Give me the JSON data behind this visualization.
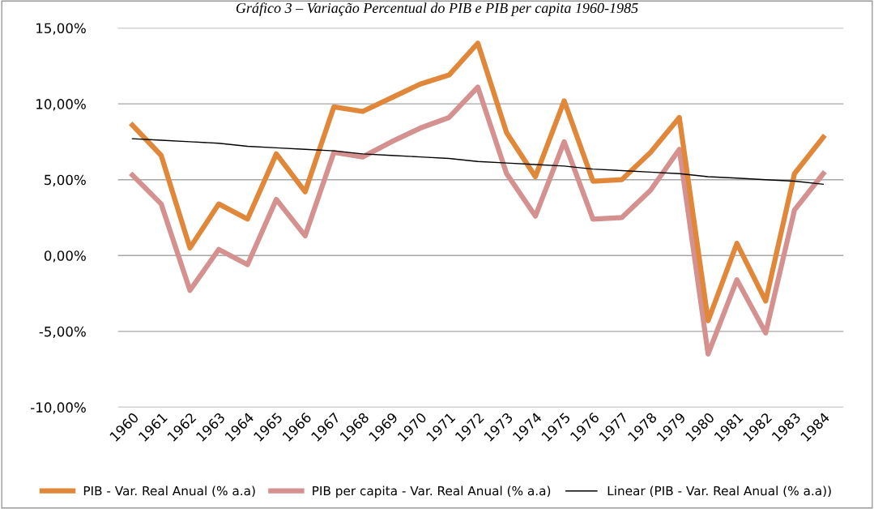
{
  "chart_data": {
    "type": "line",
    "title": "Gráfico 3 – Variação Percentual do PIB e PIB per capita 1960-1985",
    "categories": [
      "1960",
      "1961",
      "1962",
      "1963",
      "1964",
      "1965",
      "1966",
      "1967",
      "1968",
      "1969",
      "1970",
      "1971",
      "1972",
      "1973",
      "1974",
      "1975",
      "1976",
      "1977",
      "1978",
      "1979",
      "1980",
      "1981",
      "1982",
      "1983",
      "1984"
    ],
    "series": [
      {
        "name": "PIB - Var. Real Anual (% a.a)",
        "color": "#e0873a",
        "values": [
          8.6,
          6.6,
          0.5,
          3.4,
          2.4,
          6.7,
          4.2,
          9.8,
          9.5,
          10.4,
          11.3,
          11.9,
          14.0,
          8.1,
          5.2,
          10.2,
          4.9,
          5.0,
          6.8,
          9.1,
          -4.3,
          0.8,
          -3.0,
          5.4,
          7.8
        ]
      },
      {
        "name": "PIB per capita - Var. Real Anual (% a.a)",
        "color": "#d4918f",
        "values": [
          5.3,
          3.4,
          -2.3,
          0.4,
          -0.6,
          3.7,
          1.3,
          6.8,
          6.5,
          7.5,
          8.4,
          9.1,
          11.1,
          5.4,
          2.6,
          7.5,
          2.4,
          2.5,
          4.3,
          7.0,
          -6.5,
          -1.6,
          -5.1,
          3.0,
          5.4
        ]
      },
      {
        "name": "Linear (PIB - Var. Real Anual (% a.a))",
        "color": "#000000",
        "values": [
          7.7,
          7.6,
          7.5,
          7.4,
          7.2,
          7.1,
          7.0,
          6.9,
          6.7,
          6.6,
          6.5,
          6.4,
          6.2,
          6.1,
          6.0,
          5.9,
          5.7,
          5.6,
          5.5,
          5.4,
          5.2,
          5.1,
          5.0,
          4.9,
          4.7
        ]
      }
    ],
    "ylim": [
      -10,
      15
    ],
    "yticks": [
      {
        "value": -10,
        "label": "-10,00%"
      },
      {
        "value": -5,
        "label": "-5,00%"
      },
      {
        "value": 0,
        "label": "0,00%"
      },
      {
        "value": 5,
        "label": "5,00%"
      },
      {
        "value": 10,
        "label": "10,00%"
      },
      {
        "value": 15,
        "label": "15,00%"
      }
    ],
    "grid": "y",
    "legend": "bottom",
    "marker": "none",
    "line_style": "solid"
  }
}
